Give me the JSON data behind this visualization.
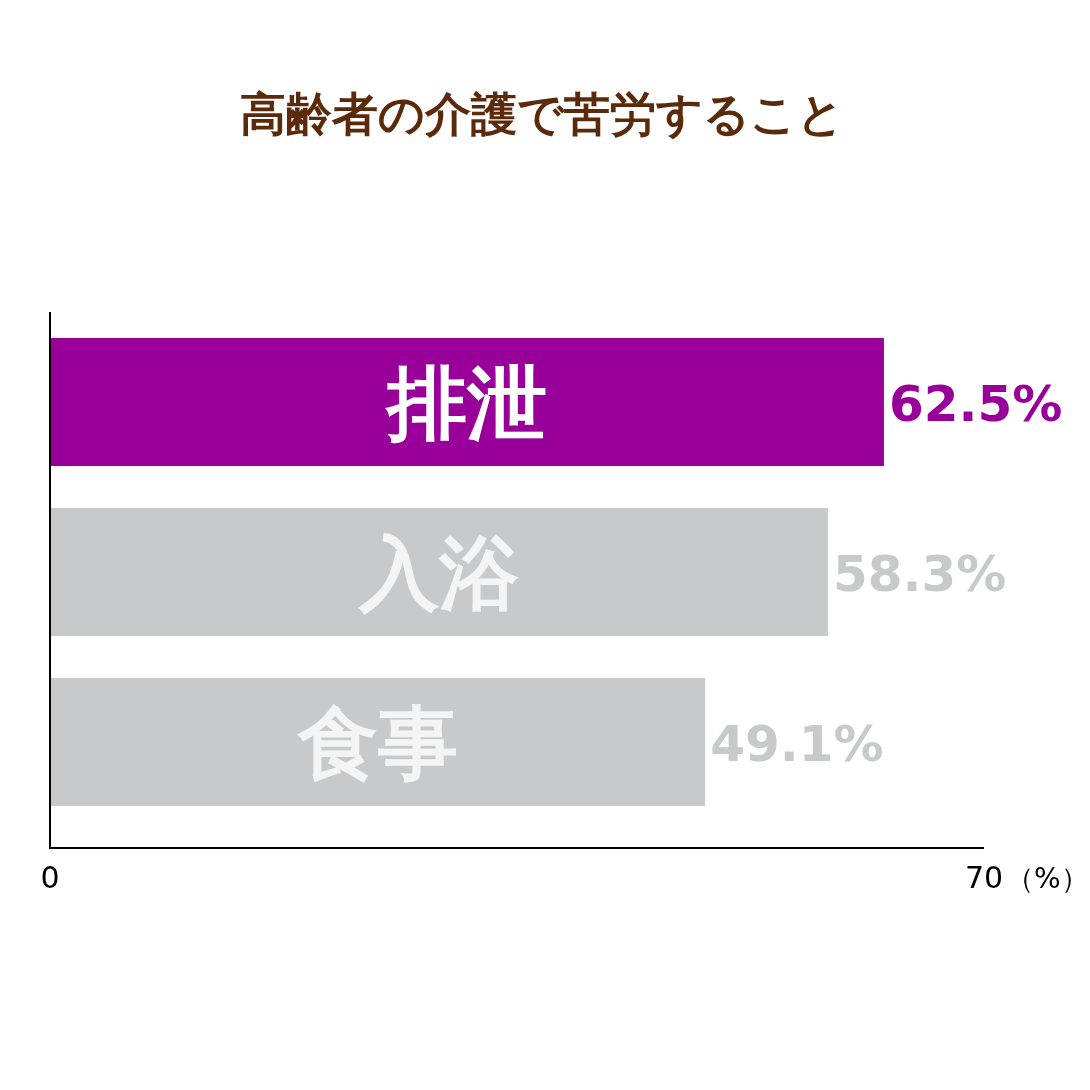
{
  "chart_data": {
    "type": "bar",
    "orientation": "horizontal",
    "title": "高齢者の介護で苦労すること",
    "xlabel": "（%）",
    "categories": [
      "排泄",
      "入浴",
      "食事"
    ],
    "values": [
      62.5,
      58.3,
      49.1
    ],
    "value_labels": [
      "62.5%",
      "58.3%",
      "49.1%"
    ],
    "colors": [
      "#990099",
      "#c8c9ca",
      "#c8c9ca"
    ],
    "xlim": [
      0,
      70
    ],
    "xticks": [
      0,
      70
    ]
  }
}
